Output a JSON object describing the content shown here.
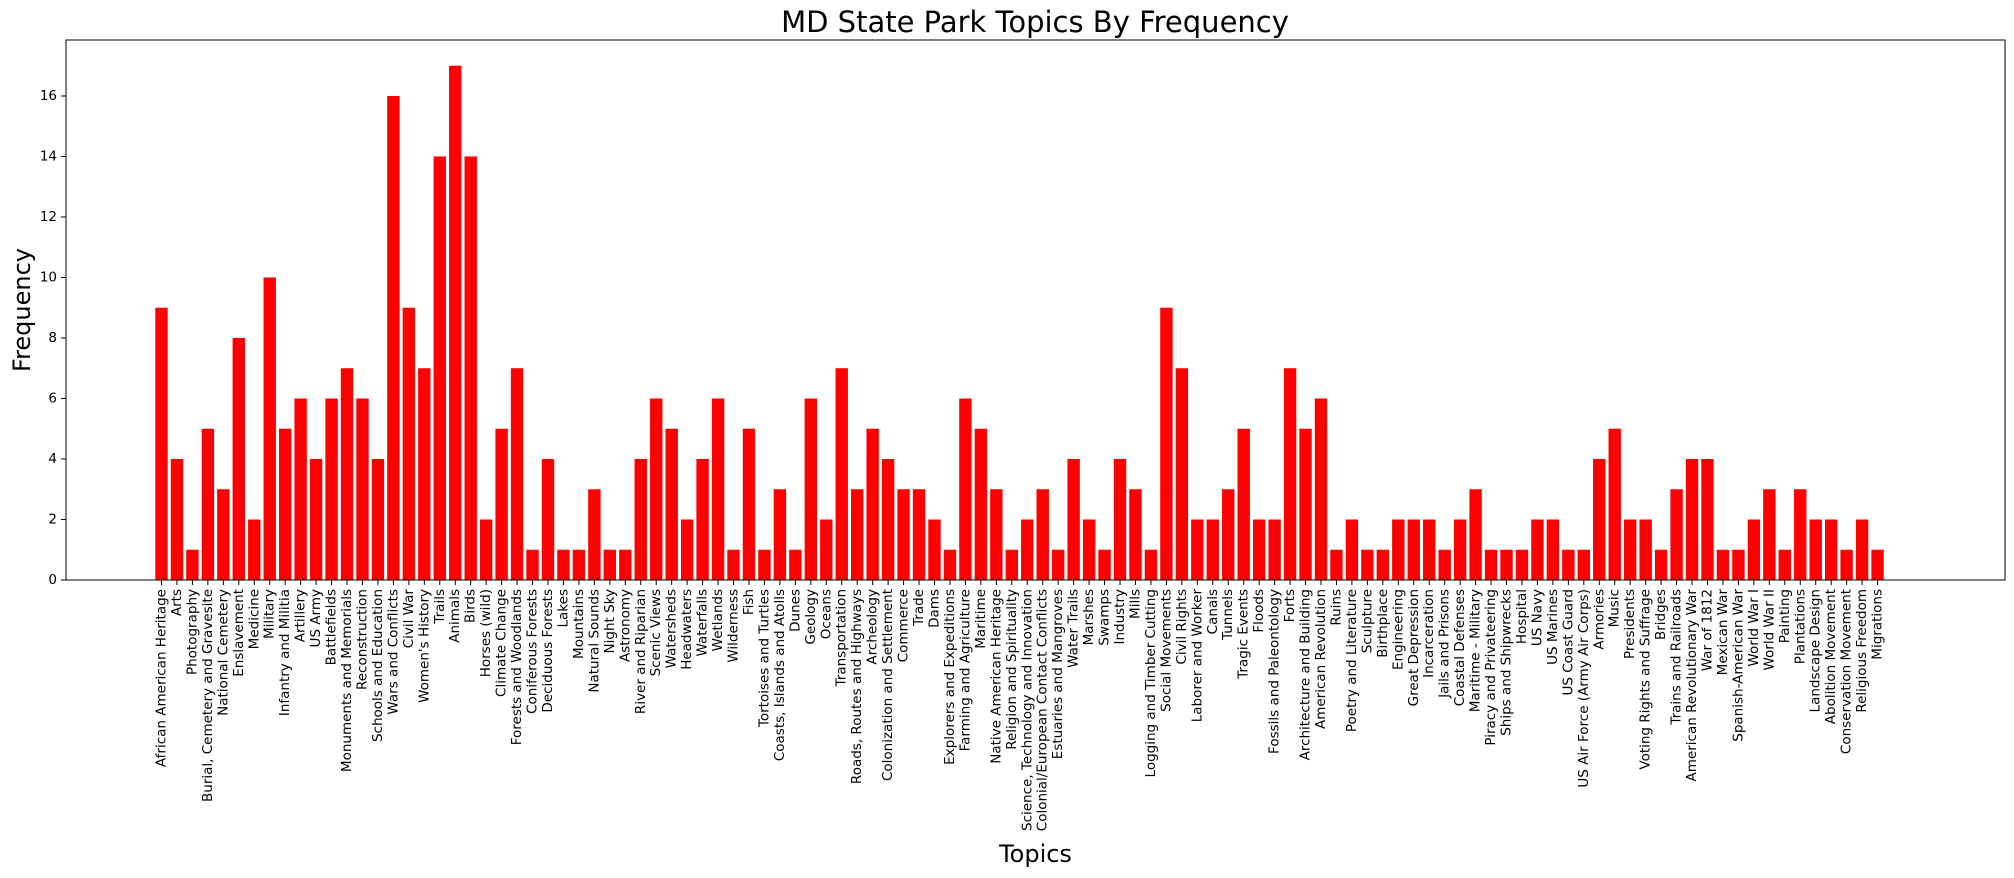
{
  "chart_data": {
    "type": "bar",
    "title": "MD State Park Topics By Frequency",
    "xlabel": "Topics",
    "ylabel": "Frequency",
    "ylim": [
      0,
      17.85
    ],
    "yticks": [
      0,
      2,
      4,
      6,
      8,
      10,
      12,
      14,
      16
    ],
    "grid": false,
    "bar_color": "#ff0000",
    "categories": [
      "African American Heritage",
      "Arts",
      "Photography",
      "Burial, Cemetery and Gravesite",
      "National Cemetery",
      "Enslavement",
      "Medicine",
      "Military",
      "Infantry and Militia",
      "Artillery",
      "US Army",
      "Battlefields",
      "Monuments and Memorials",
      "Reconstruction",
      "Schools and Education",
      "Wars and Conflicts",
      "Civil War",
      "Women's History",
      "Trails",
      "Animals",
      "Birds",
      "Horses (wild)",
      "Climate Change",
      "Forests and Woodlands",
      "Coniferous Forests",
      "Deciduous Forests",
      "Lakes",
      "Mountains",
      "Natural Sounds",
      "Night Sky",
      "Astronomy",
      "River and Riparian",
      "Scenic Views",
      "Watersheds",
      "Headwaters",
      "Waterfalls",
      "Wetlands",
      "Wilderness",
      "Fish",
      "Tortoises and Turtles",
      "Coasts, Islands and Atolls",
      "Dunes",
      "Geology",
      "Oceans",
      "Transportation",
      "Roads, Routes and Highways",
      "Archeology",
      "Colonization and Settlement",
      "Commerce",
      "Trade",
      "Dams",
      "Explorers and Expeditions",
      "Farming and  Agriculture",
      "Maritime",
      "Native American Heritage",
      "Religion and Spirituality",
      "Science, Technology and Innovation",
      "Colonial/European Contact Conflicts",
      "Estuaries and Mangroves",
      "Water Trails",
      "Marshes",
      "Swamps",
      "Industry",
      "Mills",
      "Logging and Timber Cutting",
      "Social Movements",
      "Civil Rights",
      "Laborer and Worker",
      "Canals",
      "Tunnels",
      "Tragic Events",
      "Floods",
      "Fossils and Paleontology",
      "Forts",
      "Architecture and Building",
      "American Revolution",
      "Ruins",
      "Poetry and Literature",
      "Sculpture",
      "Birthplace",
      "Engineering",
      "Great Depression",
      "Incarceration",
      "Jails and Prisons",
      "Coastal Defenses",
      "Maritime - Military",
      "Piracy and Privateering",
      "Ships and Shipwrecks",
      "Hospital",
      "US Navy",
      "US Marines",
      "US Coast Guard",
      "US Air Force (Army Air Corps)",
      "Armories",
      "Music",
      "Presidents",
      "Voting Rights and Suffrage",
      "Bridges",
      "Trains and Railroads",
      "American Revolutionary War",
      "War of 1812",
      "Mexican War",
      "Spanish-American War",
      "World War I",
      "World War II",
      "Painting",
      "Plantations",
      "Landscape Design",
      "Abolition Movement",
      "Conservation Movement",
      "Religious Freedom",
      "Migrations"
    ],
    "values": [
      9,
      4,
      1,
      5,
      3,
      8,
      2,
      10,
      5,
      6,
      4,
      6,
      7,
      6,
      4,
      16,
      9,
      7,
      14,
      17,
      14,
      2,
      5,
      7,
      1,
      4,
      1,
      1,
      3,
      1,
      1,
      4,
      6,
      5,
      2,
      4,
      6,
      1,
      5,
      1,
      3,
      1,
      6,
      2,
      7,
      3,
      5,
      4,
      3,
      3,
      2,
      1,
      6,
      5,
      3,
      1,
      2,
      3,
      1,
      4,
      2,
      1,
      4,
      3,
      1,
      9,
      7,
      2,
      2,
      3,
      5,
      2,
      2,
      7,
      5,
      6,
      1,
      2,
      1,
      1,
      2,
      2,
      2,
      1,
      2,
      3,
      1,
      1,
      1,
      2,
      2,
      1,
      1,
      4,
      5,
      2,
      2,
      1,
      3,
      4,
      4,
      1,
      1,
      2,
      3,
      1,
      3,
      2,
      2,
      1,
      2,
      1
    ]
  }
}
